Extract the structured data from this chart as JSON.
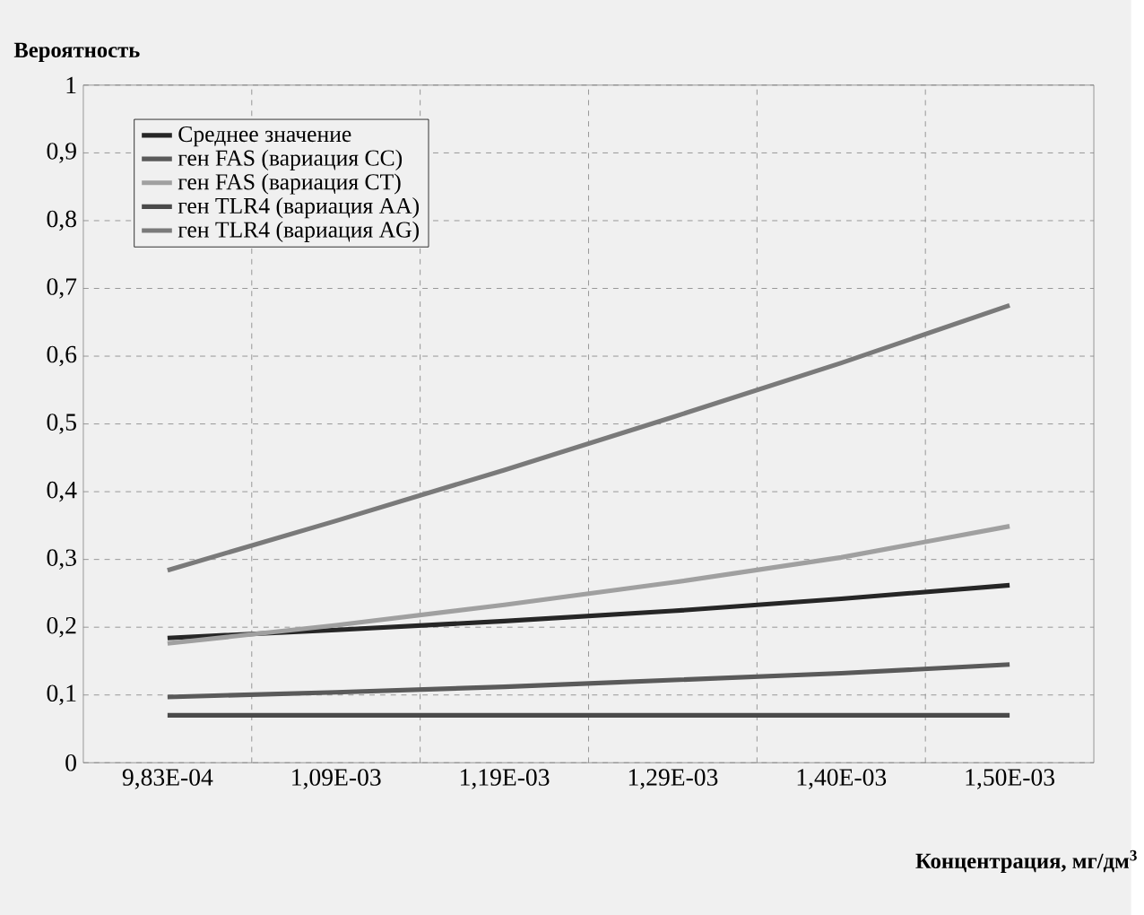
{
  "chart_data": {
    "type": "line",
    "xlabel": "Концентрация, мг/дм$^{3}$",
    "ylabel": "Вероятность",
    "categories": [
      "9,83E-04",
      "1,09E-03",
      "1,19E-03",
      "1,29E-03",
      "1,40E-03",
      "1,50E-03"
    ],
    "series": [
      {
        "name": "Среднее значение",
        "color": "#262626",
        "values": [
          0.184,
          0.196,
          0.209,
          0.224,
          0.242,
          0.262
        ]
      },
      {
        "name": "ген FAS (вариация CC)",
        "color": "#5a5a5a",
        "values": [
          0.097,
          0.104,
          0.112,
          0.122,
          0.132,
          0.145
        ]
      },
      {
        "name": "ген FAS (вариация CT)",
        "color": "#a0a0a0",
        "values": [
          0.176,
          0.203,
          0.233,
          0.266,
          0.303,
          0.349
        ]
      },
      {
        "name": "ген TLR4 (вариация AA)",
        "color": "#4a4a4a",
        "values": [
          0.07,
          0.07,
          0.07,
          0.07,
          0.07,
          0.07
        ]
      },
      {
        "name": "ген TLR4 (вариация AG)",
        "color": "#7a7a7a",
        "values": [
          0.284,
          0.357,
          0.432,
          0.51,
          0.59,
          0.675
        ]
      }
    ],
    "ylim": [
      0,
      1
    ],
    "yticks": [
      0,
      {
        "value": 0.1,
        "label": "0,1"
      },
      {
        "value": 0.2,
        "label": "0,2"
      },
      {
        "value": 0.3,
        "label": "0,3"
      },
      {
        "value": 0.4,
        "label": "0,4"
      },
      {
        "value": 0.5,
        "label": "0,5"
      },
      {
        "value": 0.6,
        "label": "0,6"
      },
      {
        "value": 0.7,
        "label": "0,7"
      },
      {
        "value": 0.8,
        "label": "0,8"
      },
      {
        "value": 0.9,
        "label": "0,9"
      },
      1
    ],
    "grid": true,
    "legend": "top left",
    "marker": "none",
    "line_style": "solid"
  }
}
